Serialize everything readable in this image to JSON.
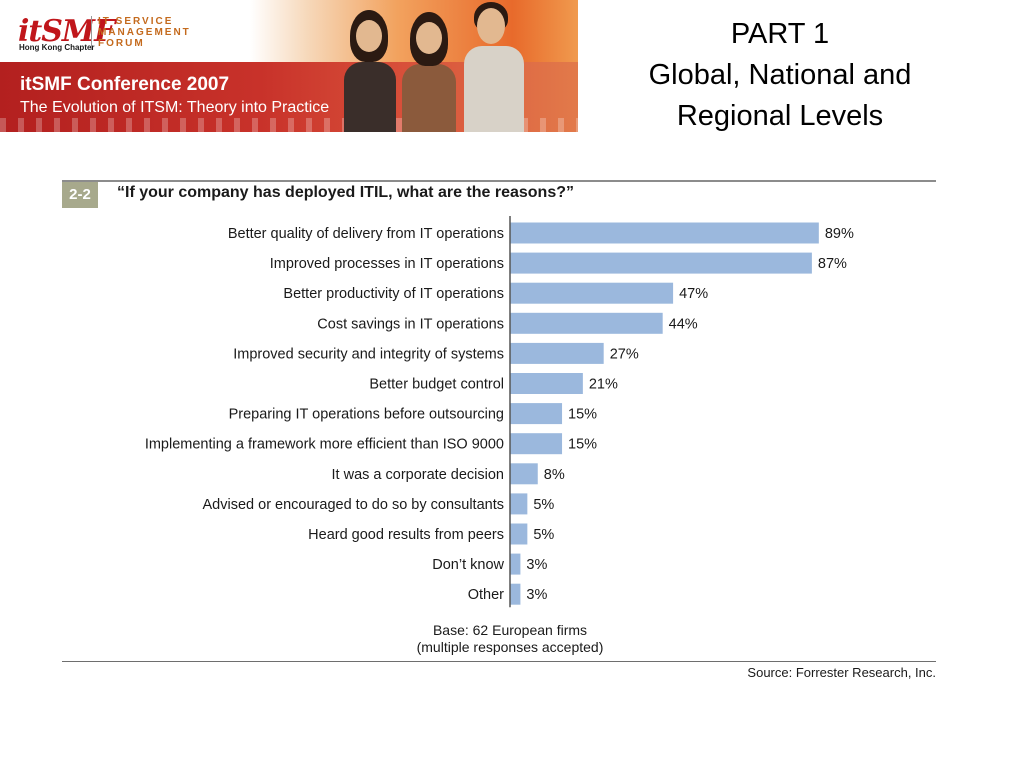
{
  "banner": {
    "logo_text": "itSMF",
    "chapter": "Hong Kong Chapter",
    "org_lines": [
      "IT SERVICE",
      "MANAGEMENT",
      "FORUM"
    ],
    "conference_title": "itSMF Conference 2007",
    "conference_subtitle": "The Evolution of ITSM: Theory into Practice"
  },
  "slide": {
    "title_lines": [
      "PART 1",
      "Global, National and",
      "Regional Levels"
    ]
  },
  "figure": {
    "number": "2-2",
    "question": "“If your company has deployed ITIL, what are the reasons?”",
    "base_lines": [
      "Base: 62 European firms",
      "(multiple responses accepted)"
    ],
    "source": "Source: Forrester Research, Inc."
  },
  "chart_data": {
    "type": "bar",
    "orientation": "horizontal",
    "categories": [
      "Better quality of delivery from IT operations",
      "Improved processes in IT operations",
      "Better productivity of IT operations",
      "Cost savings in IT operations",
      "Improved security and integrity of systems",
      "Better budget control",
      "Preparing IT operations before outsourcing",
      "Implementing a framework more efficient than ISO 9000",
      "It was a corporate decision",
      "Advised or encouraged to do so by consultants",
      "Heard good results from peers",
      "Don’t know",
      "Other"
    ],
    "values": [
      89,
      87,
      47,
      44,
      27,
      21,
      15,
      15,
      8,
      5,
      5,
      3,
      3
    ],
    "value_labels": [
      "89%",
      "87%",
      "47%",
      "44%",
      "27%",
      "21%",
      "15%",
      "15%",
      "8%",
      "5%",
      "5%",
      "3%",
      "3%"
    ],
    "unit": "%",
    "xlim": [
      0,
      100
    ],
    "bar_color": "#9bb8dd",
    "grid": false
  }
}
